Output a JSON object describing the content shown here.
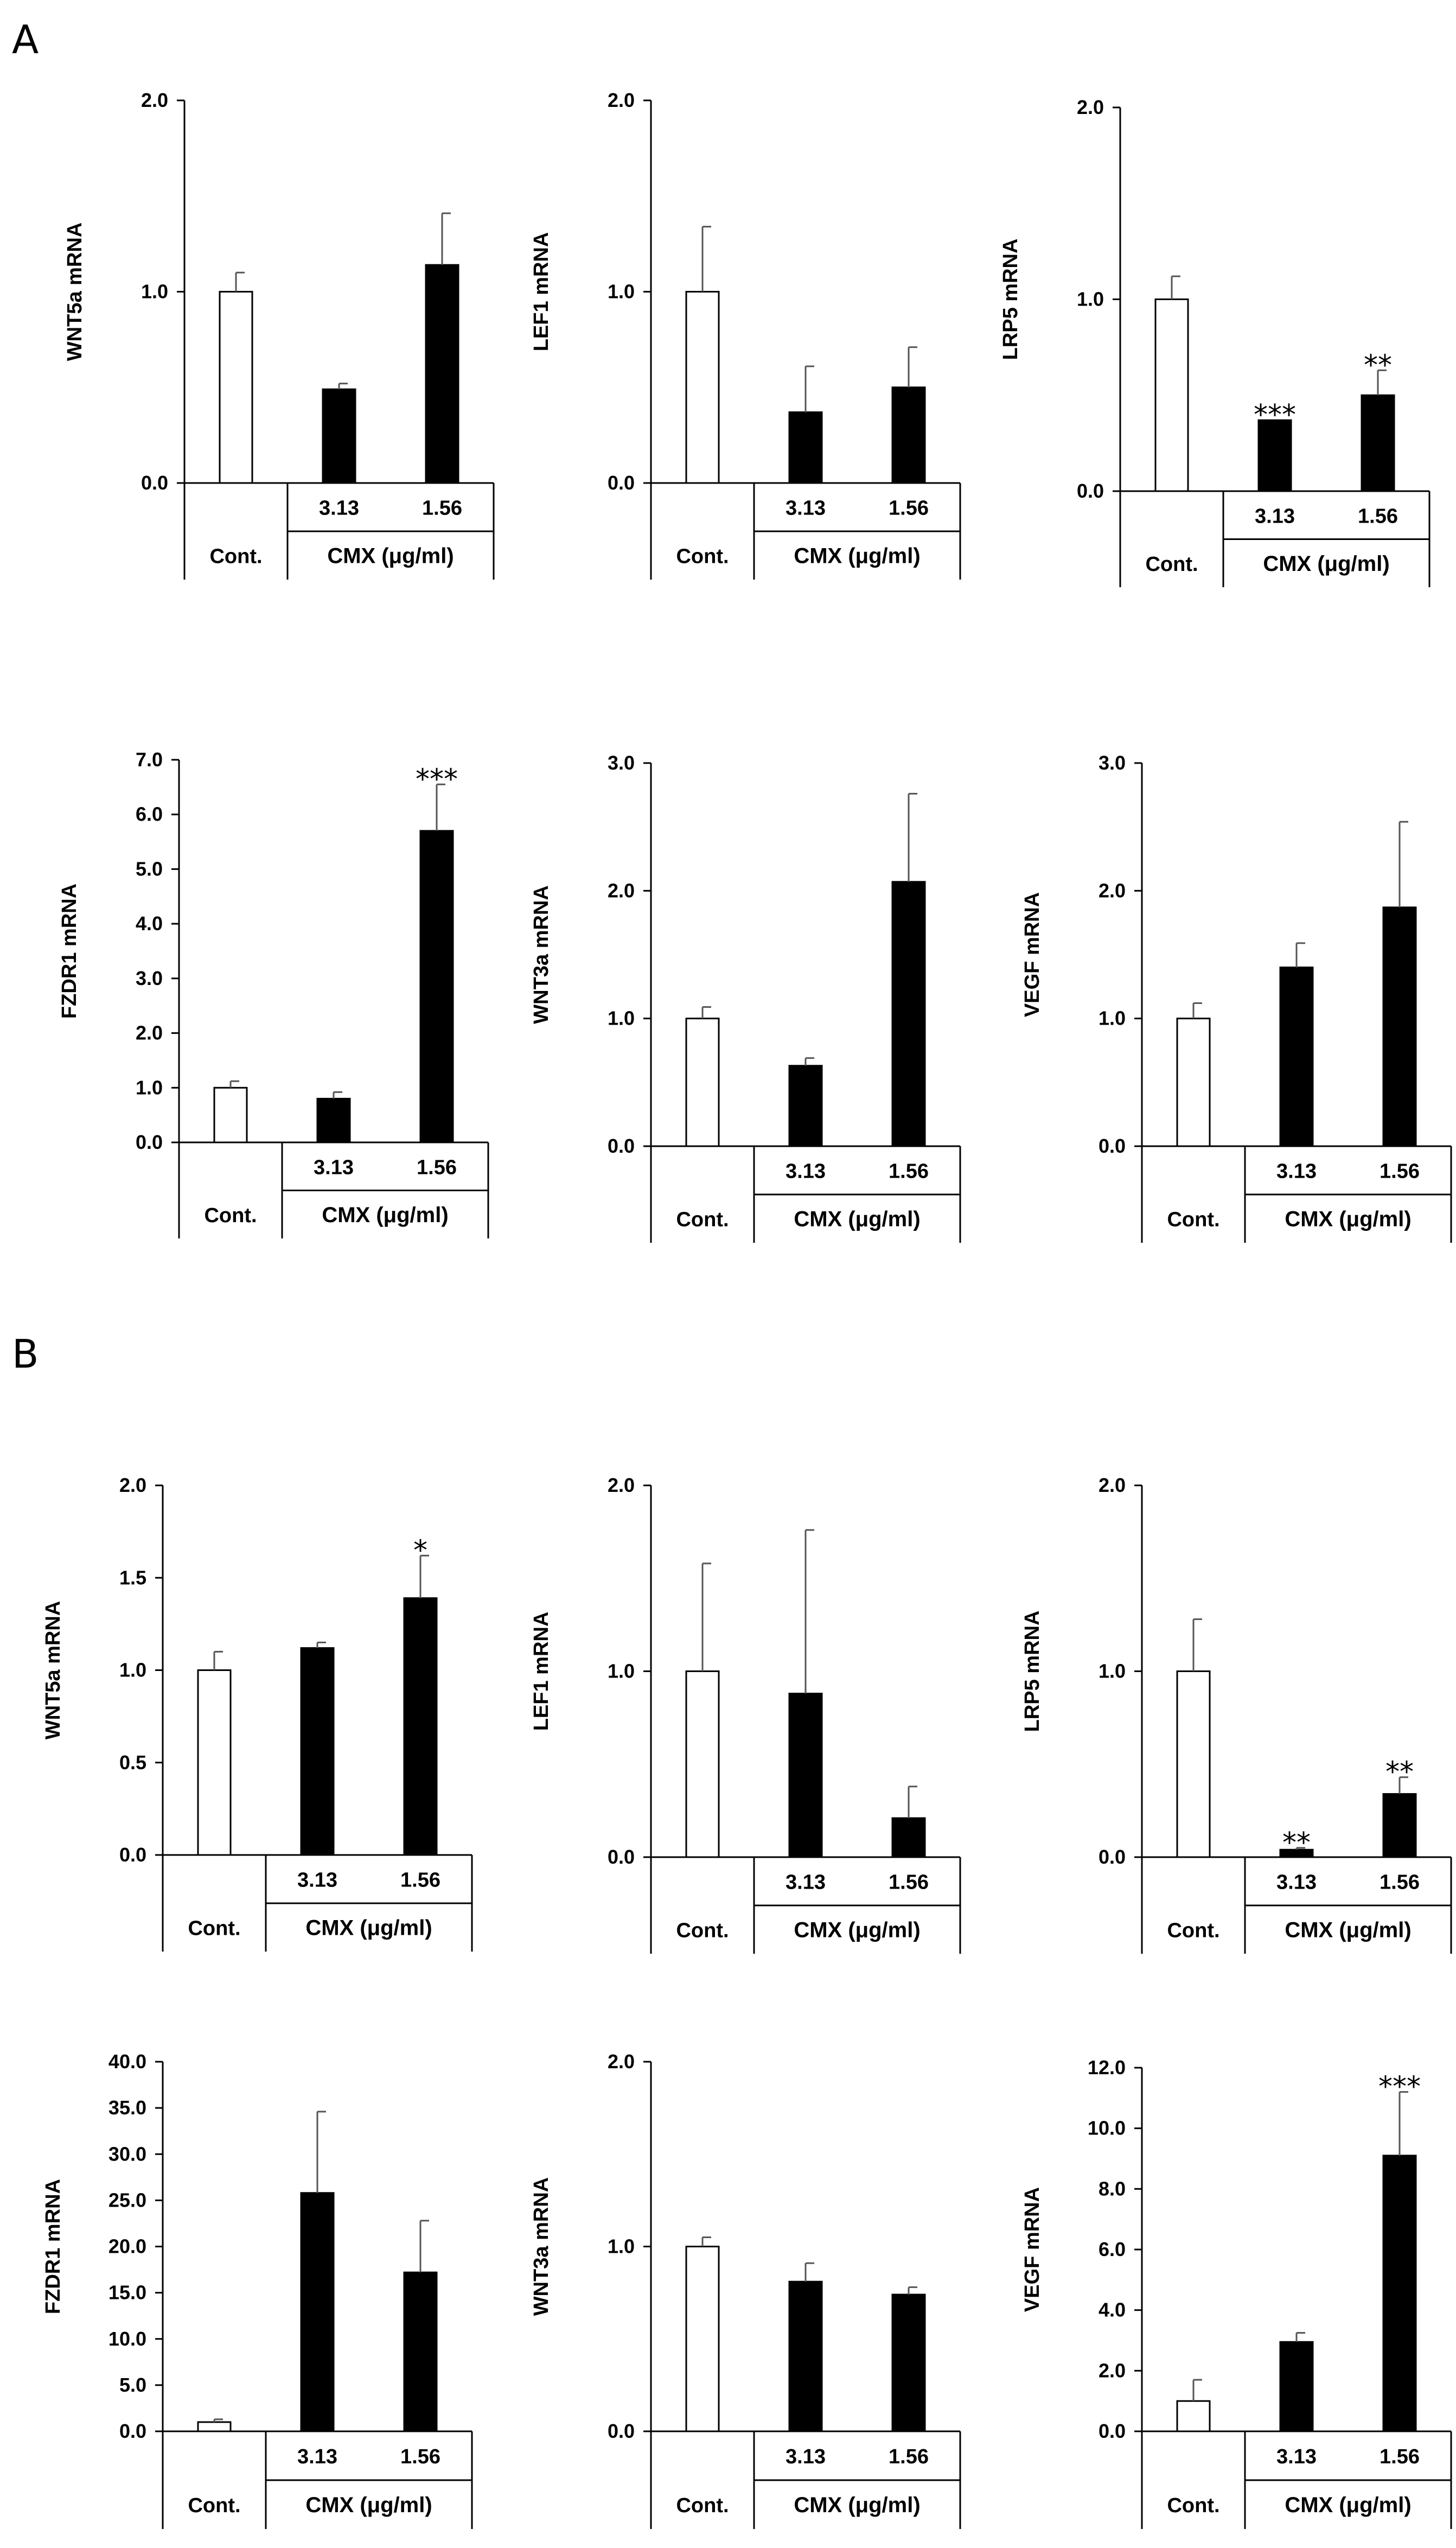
{
  "figure": {
    "panel_labels": [
      "A",
      "B"
    ]
  },
  "chart_data": [
    {
      "id": "A1",
      "type": "bar",
      "ylabel": "WNT5a mRNA",
      "ylim": [
        0,
        2
      ],
      "yticks": [
        "0.0",
        "1.0",
        "2.0"
      ],
      "categories": [
        "Cont.",
        "3.13",
        "1.56"
      ],
      "group_label": "CMX (μg/ml)",
      "values": [
        1.0,
        0.49,
        1.14
      ],
      "errors": [
        0.1,
        0.03,
        0.27
      ],
      "significance": [
        "",
        "",
        ""
      ],
      "fill": [
        "#ffffff",
        "#000000",
        "#000000"
      ]
    },
    {
      "id": "A2",
      "type": "bar",
      "ylabel": "LEF1 mRNA",
      "ylim": [
        0,
        2
      ],
      "yticks": [
        "0.0",
        "1.0",
        "2.0"
      ],
      "categories": [
        "Cont.",
        "3.13",
        "1.56"
      ],
      "group_label": "CMX (μg/ml)",
      "values": [
        1.0,
        0.37,
        0.5
      ],
      "errors": [
        0.34,
        0.24,
        0.21
      ],
      "significance": [
        "",
        "",
        ""
      ],
      "fill": [
        "#ffffff",
        "#000000",
        "#000000"
      ]
    },
    {
      "id": "A3",
      "type": "bar",
      "ylabel": "LRP5 mRNA",
      "ylim": [
        0,
        2
      ],
      "yticks": [
        "0.0",
        "1.0",
        "2.0"
      ],
      "categories": [
        "Cont.",
        "3.13",
        "1.56"
      ],
      "group_label": "CMX (μg/ml)",
      "values": [
        1.0,
        0.37,
        0.5
      ],
      "errors": [
        0.12,
        0.0,
        0.13
      ],
      "significance": [
        "",
        "***",
        "**"
      ],
      "fill": [
        "#ffffff",
        "#000000",
        "#000000"
      ]
    },
    {
      "id": "A4",
      "type": "bar",
      "ylabel": "FZDR1 mRNA",
      "ylim": [
        0,
        7
      ],
      "yticks": [
        "0.0",
        "1.0",
        "2.0",
        "3.0",
        "4.0",
        "5.0",
        "6.0",
        "7.0"
      ],
      "categories": [
        "Cont.",
        "3.13",
        "1.56"
      ],
      "group_label": "CMX (μg/ml)",
      "values": [
        1.0,
        0.8,
        5.7
      ],
      "errors": [
        0.12,
        0.12,
        0.85
      ],
      "significance": [
        "",
        "",
        "***"
      ],
      "fill": [
        "#ffffff",
        "#000000",
        "#000000"
      ]
    },
    {
      "id": "A5",
      "type": "bar",
      "ylabel": "WNT3a mRNA",
      "ylim": [
        0,
        3
      ],
      "yticks": [
        "0.0",
        "1.0",
        "2.0",
        "3.0"
      ],
      "categories": [
        "Cont.",
        "3.13",
        "1.56"
      ],
      "group_label": "CMX (μg/ml)",
      "values": [
        1.0,
        0.63,
        2.07
      ],
      "errors": [
        0.09,
        0.06,
        0.69
      ],
      "significance": [
        "",
        "",
        ""
      ],
      "fill": [
        "#ffffff",
        "#000000",
        "#000000"
      ]
    },
    {
      "id": "A6",
      "type": "bar",
      "ylabel": "VEGF mRNA",
      "ylim": [
        0,
        3
      ],
      "yticks": [
        "0.0",
        "1.0",
        "2.0",
        "3.0"
      ],
      "categories": [
        "Cont.",
        "3.13",
        "1.56"
      ],
      "group_label": "CMX (μg/ml)",
      "values": [
        1.0,
        1.4,
        1.87
      ],
      "errors": [
        0.12,
        0.19,
        0.67
      ],
      "significance": [
        "",
        "",
        ""
      ],
      "fill": [
        "#ffffff",
        "#000000",
        "#000000"
      ]
    },
    {
      "id": "B1",
      "type": "bar",
      "ylabel": "WNT5a mRNA",
      "ylim": [
        0,
        2
      ],
      "yticks": [
        "0.0",
        "0.5",
        "1.0",
        "1.5",
        "2.0"
      ],
      "categories": [
        "Cont.",
        "3.13",
        "1.56"
      ],
      "group_label": "CMX (μg/ml)",
      "values": [
        1.0,
        1.12,
        1.39
      ],
      "errors": [
        0.1,
        0.03,
        0.23
      ],
      "significance": [
        "",
        "",
        "*"
      ],
      "fill": [
        "#ffffff",
        "#000000",
        "#000000"
      ]
    },
    {
      "id": "B2",
      "type": "bar",
      "ylabel": "LEF1 mRNA",
      "ylim": [
        0,
        2
      ],
      "yticks": [
        "0.0",
        "1.0",
        "2.0"
      ],
      "categories": [
        "Cont.",
        "3.13",
        "1.56"
      ],
      "group_label": "CMX (μg/ml)",
      "values": [
        1.0,
        0.88,
        0.21
      ],
      "errors": [
        0.58,
        0.88,
        0.17
      ],
      "significance": [
        "",
        "",
        ""
      ],
      "fill": [
        "#ffffff",
        "#000000",
        "#000000"
      ]
    },
    {
      "id": "B3",
      "type": "bar",
      "ylabel": "LRP5 mRNA",
      "ylim": [
        0,
        2
      ],
      "yticks": [
        "0.0",
        "1.0",
        "2.0"
      ],
      "categories": [
        "Cont.",
        "3.13",
        "1.56"
      ],
      "group_label": "CMX (μg/ml)",
      "values": [
        1.0,
        0.04,
        0.34
      ],
      "errors": [
        0.28,
        0.01,
        0.09
      ],
      "significance": [
        "",
        "**",
        "**"
      ],
      "fill": [
        "#ffffff",
        "#000000",
        "#000000"
      ]
    },
    {
      "id": "B4",
      "type": "bar",
      "ylabel": "FZDR1 mRNA",
      "ylim": [
        0,
        40
      ],
      "yticks": [
        "0.0",
        "5.0",
        "10.0",
        "15.0",
        "20.0",
        "25.0",
        "30.0",
        "35.0",
        "40.0"
      ],
      "categories": [
        "Cont.",
        "3.13",
        "1.56"
      ],
      "group_label": "CMX (μg/ml)",
      "values": [
        1.0,
        25.8,
        17.2
      ],
      "errors": [
        0.3,
        8.8,
        5.6
      ],
      "significance": [
        "",
        "",
        ""
      ],
      "fill": [
        "#ffffff",
        "#000000",
        "#000000"
      ]
    },
    {
      "id": "B5",
      "type": "bar",
      "ylabel": "WNT3a mRNA",
      "ylim": [
        0,
        2
      ],
      "yticks": [
        "0.0",
        "1.0",
        "2.0"
      ],
      "categories": [
        "Cont.",
        "3.13",
        "1.56"
      ],
      "group_label": "CMX (μg/ml)",
      "values": [
        1.0,
        0.81,
        0.74
      ],
      "errors": [
        0.05,
        0.1,
        0.04
      ],
      "significance": [
        "",
        "",
        ""
      ],
      "fill": [
        "#ffffff",
        "#000000",
        "#000000"
      ]
    },
    {
      "id": "B6",
      "type": "bar",
      "ylabel": "VEGF mRNA",
      "ylim": [
        0,
        12
      ],
      "yticks": [
        "0.0",
        "2.0",
        "4.0",
        "6.0",
        "8.0",
        "10.0",
        "12.0"
      ],
      "categories": [
        "Cont.",
        "3.13",
        "1.56"
      ],
      "group_label": "CMX (μg/ml)",
      "values": [
        1.0,
        2.95,
        9.1
      ],
      "errors": [
        0.7,
        0.3,
        2.1
      ],
      "significance": [
        "",
        "",
        "***"
      ],
      "fill": [
        "#ffffff",
        "#000000",
        "#000000"
      ]
    }
  ]
}
